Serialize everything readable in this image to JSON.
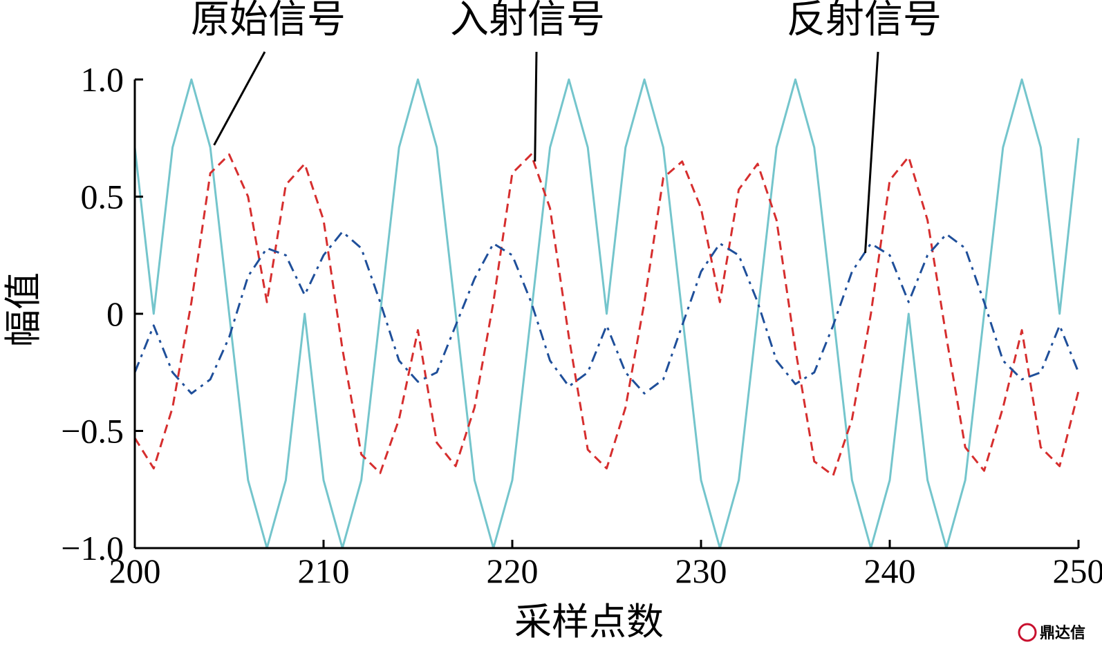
{
  "chart_data": {
    "type": "line",
    "xlabel": "采样点数",
    "ylabel": "幅值",
    "xlim": [
      200,
      250
    ],
    "ylim": [
      -1.0,
      1.0
    ],
    "xticks": [
      "200",
      "210",
      "220",
      "230",
      "240",
      "250"
    ],
    "yticks": [
      "−1.0",
      "−0.5",
      "0",
      "0.5",
      "1.0"
    ],
    "grid": false,
    "x": [
      200,
      201,
      202,
      203,
      204,
      205,
      206,
      207,
      208,
      209,
      210,
      211,
      212,
      213,
      214,
      215,
      216,
      217,
      218,
      219,
      220,
      221,
      222,
      223,
      224,
      225,
      226,
      227,
      228,
      229,
      230,
      231,
      232,
      233,
      234,
      235,
      236,
      237,
      238,
      239,
      240,
      241,
      242,
      243,
      244,
      245,
      246,
      247,
      248,
      249,
      250
    ],
    "series": [
      {
        "name": "原始信号",
        "color": "#74c5cc",
        "style": "solid",
        "values": [
          0.71,
          0.0,
          0.71,
          1.0,
          0.71,
          0.0,
          -0.71,
          -1.0,
          -0.71,
          0.0,
          -0.71,
          -1.0,
          -0.71,
          0.0,
          0.71,
          1.0,
          0.71,
          0.0,
          -0.71,
          -1.0,
          -0.71,
          0.0,
          0.71,
          1.0,
          0.71,
          0.0,
          0.71,
          1.0,
          0.71,
          0.0,
          -0.71,
          -1.0,
          -0.71,
          0.0,
          0.71,
          1.0,
          0.71,
          0.0,
          -0.71,
          -1.0,
          -0.71,
          0.0,
          -0.71,
          -1.0,
          -0.71,
          0.0,
          0.71,
          1.0,
          0.71,
          0.0,
          0.75
        ]
      },
      {
        "name": "入射信号",
        "color": "#d62e2e",
        "style": "dashed",
        "values": [
          -0.53,
          -0.66,
          -0.4,
          0.05,
          0.6,
          0.68,
          0.5,
          0.05,
          0.55,
          0.64,
          0.4,
          -0.15,
          -0.6,
          -0.68,
          -0.45,
          -0.07,
          -0.55,
          -0.65,
          -0.4,
          0.05,
          0.6,
          0.68,
          0.45,
          -0.1,
          -0.58,
          -0.66,
          -0.4,
          0.05,
          0.58,
          0.65,
          0.45,
          0.05,
          0.53,
          0.64,
          0.4,
          -0.15,
          -0.63,
          -0.69,
          -0.45,
          0.0,
          0.57,
          0.67,
          0.4,
          -0.1,
          -0.57,
          -0.67,
          -0.4,
          -0.07,
          -0.57,
          -0.65,
          -0.33
        ]
      },
      {
        "name": "反射信号",
        "color": "#1f4f9a",
        "style": "dashdot",
        "values": [
          -0.25,
          -0.05,
          -0.25,
          -0.34,
          -0.28,
          -0.1,
          0.16,
          0.28,
          0.25,
          0.08,
          0.25,
          0.35,
          0.28,
          0.05,
          -0.2,
          -0.29,
          -0.25,
          -0.05,
          0.15,
          0.3,
          0.25,
          0.05,
          -0.2,
          -0.31,
          -0.25,
          -0.05,
          -0.25,
          -0.34,
          -0.28,
          -0.05,
          0.18,
          0.3,
          0.25,
          0.05,
          -0.2,
          -0.3,
          -0.25,
          -0.05,
          0.18,
          0.3,
          0.25,
          0.05,
          0.25,
          0.34,
          0.28,
          0.05,
          -0.2,
          -0.28,
          -0.25,
          -0.05,
          -0.25
        ]
      }
    ],
    "annotations": [
      {
        "text": "原始信号",
        "x": 204.2,
        "y": 0.72
      },
      {
        "text": "入射信号",
        "x": 221.2,
        "y": 0.65
      },
      {
        "text": "反射信号",
        "x": 238.7,
        "y": 0.26
      }
    ]
  },
  "watermark": {
    "text": "鼎达信",
    "color": "#c8102e"
  }
}
